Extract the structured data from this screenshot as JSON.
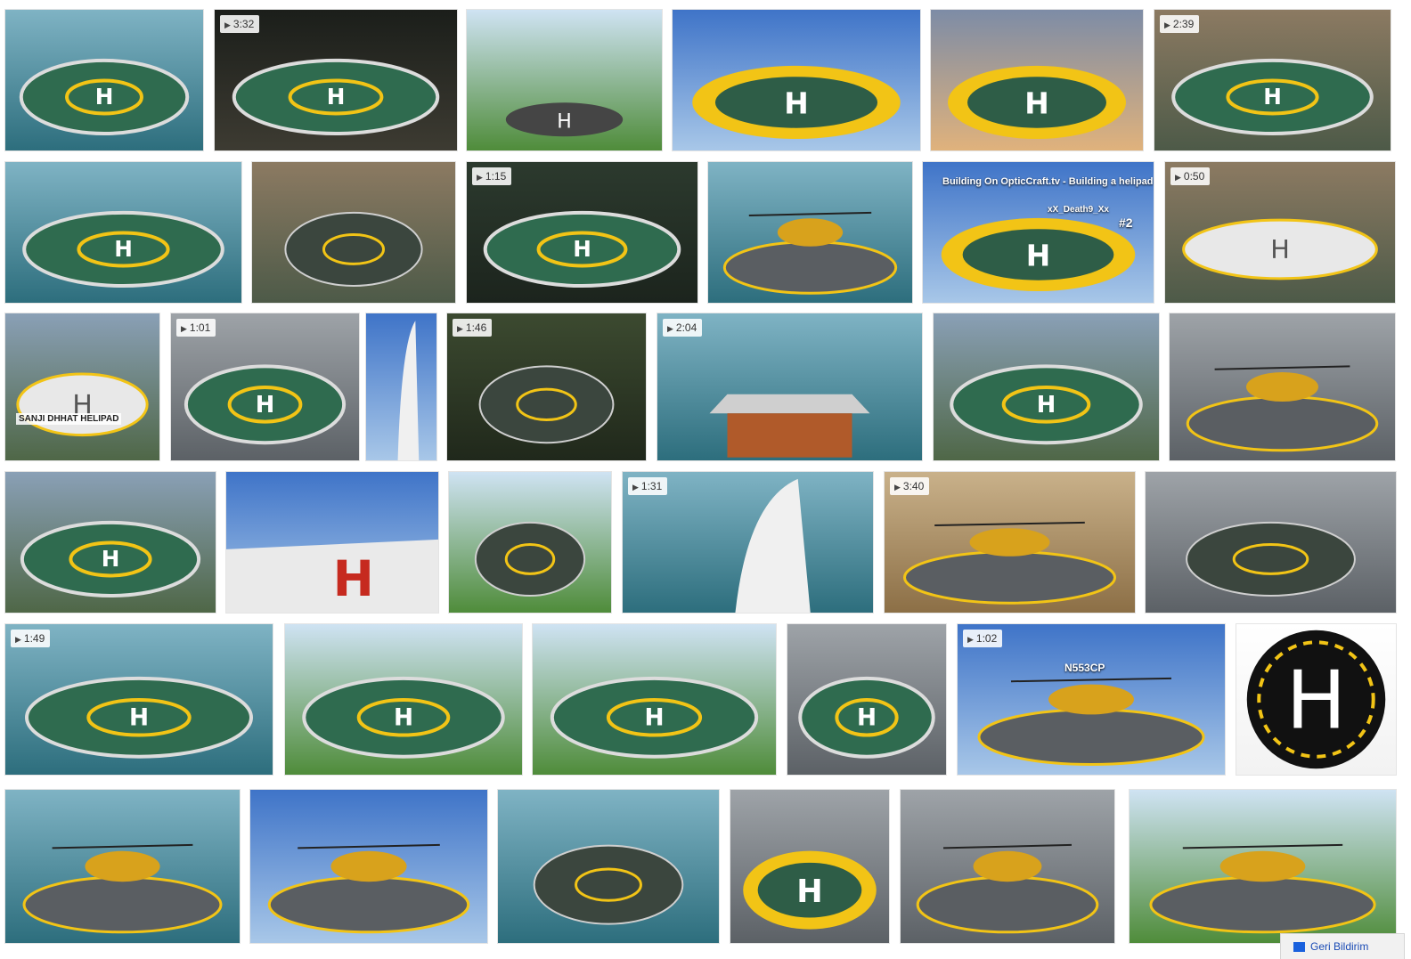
{
  "results": [
    {
      "id": "r1",
      "label": "",
      "duration": ""
    },
    {
      "id": "r2",
      "label": "",
      "duration": "3:32"
    },
    {
      "id": "r3",
      "label": "",
      "duration": ""
    },
    {
      "id": "r4",
      "label": "",
      "duration": ""
    },
    {
      "id": "r5",
      "label": "",
      "duration": ""
    },
    {
      "id": "r6",
      "label": "",
      "duration": "2:39"
    },
    {
      "id": "r7",
      "label": "",
      "duration": ""
    },
    {
      "id": "r8",
      "label": "",
      "duration": ""
    },
    {
      "id": "r9",
      "label": "",
      "duration": "1:15"
    },
    {
      "id": "r10",
      "label": "",
      "duration": ""
    },
    {
      "id": "r11",
      "label": "",
      "duration": "",
      "overlay_title": "Building On OpticCraft.tv - Building a helipad",
      "overlay_sub": "xX_Death9_Xx",
      "overlay_num": "#2"
    },
    {
      "id": "r12",
      "label": "",
      "duration": "0:50"
    },
    {
      "id": "r13",
      "label": "",
      "duration": "",
      "overlay_sign": "SANJI DHHAT HELIPAD"
    },
    {
      "id": "r14",
      "label": "",
      "duration": "1:01"
    },
    {
      "id": "r15",
      "label": "",
      "duration": ""
    },
    {
      "id": "r16",
      "label": "",
      "duration": "1:46"
    },
    {
      "id": "r17",
      "label": "",
      "duration": "2:04"
    },
    {
      "id": "r18",
      "label": "",
      "duration": ""
    },
    {
      "id": "r19",
      "label": "",
      "duration": ""
    },
    {
      "id": "r20",
      "label": "",
      "duration": ""
    },
    {
      "id": "r21",
      "label": "",
      "duration": ""
    },
    {
      "id": "r22",
      "label": "",
      "duration": ""
    },
    {
      "id": "r23",
      "label": "",
      "duration": "1:31"
    },
    {
      "id": "r24",
      "label": "",
      "duration": "3:40"
    },
    {
      "id": "r25",
      "label": "",
      "duration": ""
    },
    {
      "id": "r26",
      "label": "",
      "duration": "1:49"
    },
    {
      "id": "r27",
      "label": "",
      "duration": ""
    },
    {
      "id": "r28",
      "label": "",
      "duration": ""
    },
    {
      "id": "r29",
      "label": "",
      "duration": ""
    },
    {
      "id": "r30",
      "label": "",
      "duration": "1:02",
      "overlay_tail": "N553CP"
    },
    {
      "id": "r31",
      "label": "",
      "duration": ""
    },
    {
      "id": "r32",
      "label": "",
      "duration": ""
    },
    {
      "id": "r33",
      "label": "",
      "duration": ""
    },
    {
      "id": "r34",
      "label": "",
      "duration": ""
    },
    {
      "id": "r35",
      "label": "",
      "duration": ""
    },
    {
      "id": "r36",
      "label": "",
      "duration": ""
    },
    {
      "id": "r37",
      "label": "",
      "duration": ""
    }
  ],
  "feedback": {
    "label": "Geri Bildirim",
    "icon": "feedback-icon"
  },
  "colors": {
    "helipad_green": "#2f6b4f",
    "helipad_yellow": "#f2c416",
    "sky": "#6f9fd8",
    "sea": "#2d7a8c",
    "asphalt": "#5a5e62"
  }
}
